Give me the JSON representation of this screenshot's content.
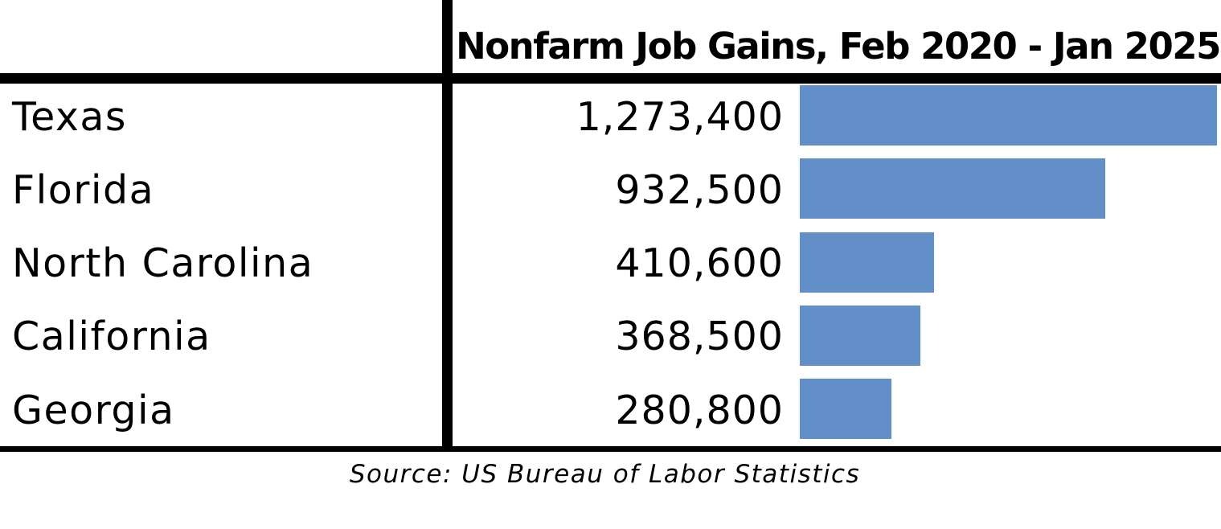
{
  "chart_data": {
    "type": "bar",
    "orientation": "horizontal",
    "title": "Nonfarm Job Gains, Feb 2020 - Jan 2025",
    "categories": [
      "Texas",
      "Florida",
      "North Carolina",
      "California",
      "Georgia"
    ],
    "values": [
      1273400,
      932500,
      410600,
      368500,
      280800
    ],
    "value_labels": [
      "1,273,400",
      "932,500",
      "410,600",
      "368,500",
      "280,800"
    ],
    "bar_color": "#628fc8",
    "source": "Source:  US Bureau of Labor Statistics",
    "xlim": [
      0,
      1273400
    ],
    "grid": false,
    "legend": "none"
  }
}
